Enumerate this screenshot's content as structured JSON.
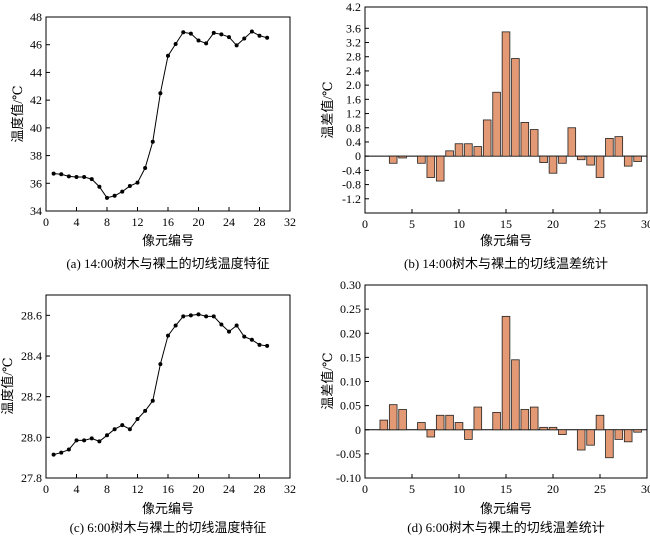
{
  "chart_data": [
    {
      "id": "a",
      "type": "line",
      "caption": "(a) 14:00树木与裸土的切线温度特征",
      "xlabel": "像元编号",
      "ylabel": "温度值/℃",
      "xlim": [
        0,
        32
      ],
      "ylim": [
        34,
        48
      ],
      "xticks": [
        0,
        4,
        8,
        12,
        16,
        20,
        24,
        28,
        32
      ],
      "yticks": [
        34,
        36,
        38,
        40,
        42,
        44,
        46,
        48
      ],
      "tick_decimals": 0,
      "x": [
        1,
        2,
        3,
        4,
        5,
        6,
        7,
        8,
        9,
        10,
        11,
        12,
        13,
        14,
        15,
        16,
        17,
        18,
        19,
        20,
        21,
        22,
        23,
        24,
        25,
        26,
        27,
        28,
        29
      ],
      "y": [
        36.7,
        36.65,
        36.5,
        36.45,
        36.45,
        36.3,
        35.75,
        34.95,
        35.1,
        35.4,
        35.8,
        36.05,
        37.1,
        39.0,
        42.5,
        45.2,
        46.05,
        46.9,
        46.8,
        46.3,
        46.1,
        46.85,
        46.75,
        46.55,
        45.95,
        46.45,
        46.95,
        46.65,
        46.5
      ],
      "marker": "dot",
      "color": "#000000"
    },
    {
      "id": "b",
      "type": "bar",
      "caption": "(b) 14:00树木与裸土的切线温差统计",
      "xlabel": "像元编号",
      "ylabel": "温差值/℃",
      "xlim": [
        0,
        30
      ],
      "ylim": [
        -1.6,
        4.2
      ],
      "xticks": [
        0,
        5,
        10,
        15,
        20,
        25,
        30
      ],
      "yticks": [
        -1.2,
        -0.8,
        -0.4,
        0,
        0.4,
        0.8,
        1.2,
        1.6,
        2.0,
        2.4,
        2.8,
        3.2,
        3.6,
        4.2
      ],
      "ytick_labels": [
        "-1.2",
        "-0.8",
        "-0.4",
        "0",
        "0.4",
        "0.8",
        "1.2",
        "1.6",
        "2.0",
        "2.4",
        "2.8",
        "3.2",
        "3.6",
        "4.2"
      ],
      "x": [
        1,
        2,
        3,
        4,
        5,
        6,
        7,
        8,
        9,
        10,
        11,
        12,
        13,
        14,
        15,
        16,
        17,
        18,
        19,
        20,
        21,
        22,
        23,
        24,
        25,
        26,
        27,
        28,
        29
      ],
      "values": [
        0,
        0,
        -0.2,
        -0.05,
        0,
        -0.2,
        -0.6,
        -0.7,
        0.15,
        0.35,
        0.35,
        0.27,
        1.02,
        1.8,
        3.5,
        2.75,
        0.95,
        0.75,
        -0.18,
        -0.48,
        -0.2,
        0.8,
        -0.1,
        -0.25,
        -0.6,
        0.5,
        0.55,
        -0.28,
        -0.15
      ],
      "color": "#e39a74",
      "edge": "#222222"
    },
    {
      "id": "c",
      "type": "line",
      "caption": "(c) 6:00树木与裸土的切线温度特征",
      "xlabel": "像元编号",
      "ylabel": "温度值/℃",
      "xlim": [
        0,
        32
      ],
      "ylim": [
        27.8,
        28.7
      ],
      "xticks": [
        0,
        4,
        8,
        12,
        16,
        20,
        24,
        28,
        32
      ],
      "yticks": [
        27.8,
        28.0,
        28.2,
        28.4,
        28.6
      ],
      "tick_decimals": 1,
      "x": [
        1,
        2,
        3,
        4,
        5,
        6,
        7,
        8,
        9,
        10,
        11,
        12,
        13,
        14,
        15,
        16,
        17,
        18,
        19,
        20,
        21,
        22,
        23,
        24,
        25,
        26,
        27,
        28,
        29
      ],
      "y": [
        27.915,
        27.925,
        27.94,
        27.985,
        27.985,
        27.995,
        27.98,
        28.01,
        28.04,
        28.06,
        28.04,
        28.09,
        28.13,
        28.18,
        28.36,
        28.5,
        28.55,
        28.595,
        28.6,
        28.605,
        28.595,
        28.595,
        28.555,
        28.52,
        28.55,
        28.495,
        28.48,
        28.455,
        28.45
      ],
      "marker": "dot",
      "color": "#000000"
    },
    {
      "id": "d",
      "type": "bar",
      "caption": "(d) 6:00树木与裸土的切线温差统计",
      "xlabel": "像元编号",
      "ylabel": "温差值/℃",
      "xlim": [
        0,
        30
      ],
      "ylim": [
        -0.1,
        0.3
      ],
      "xticks": [
        0,
        5,
        10,
        15,
        20,
        25,
        30
      ],
      "yticks": [
        -0.1,
        -0.05,
        0,
        0.05,
        0.1,
        0.15,
        0.2,
        0.25,
        0.3
      ],
      "ytick_labels": [
        "-0.10",
        "-0.05",
        "0",
        "0.05",
        "0.10",
        "0.15",
        "0.20",
        "0.25",
        "0.30"
      ],
      "x": [
        1,
        2,
        3,
        4,
        5,
        6,
        7,
        8,
        9,
        10,
        11,
        12,
        13,
        14,
        15,
        16,
        17,
        18,
        19,
        20,
        21,
        22,
        23,
        24,
        25,
        26,
        27,
        28,
        29
      ],
      "values": [
        0,
        0.02,
        0.052,
        0.042,
        0,
        0.015,
        -0.015,
        0.03,
        0.03,
        0.015,
        -0.02,
        0.047,
        0,
        0.036,
        0.235,
        0.145,
        0.042,
        0.047,
        0.005,
        0.005,
        -0.01,
        0,
        -0.042,
        -0.032,
        0.03,
        -0.058,
        -0.02,
        -0.025,
        -0.005
      ],
      "color": "#e39a74",
      "edge": "#222222"
    }
  ]
}
